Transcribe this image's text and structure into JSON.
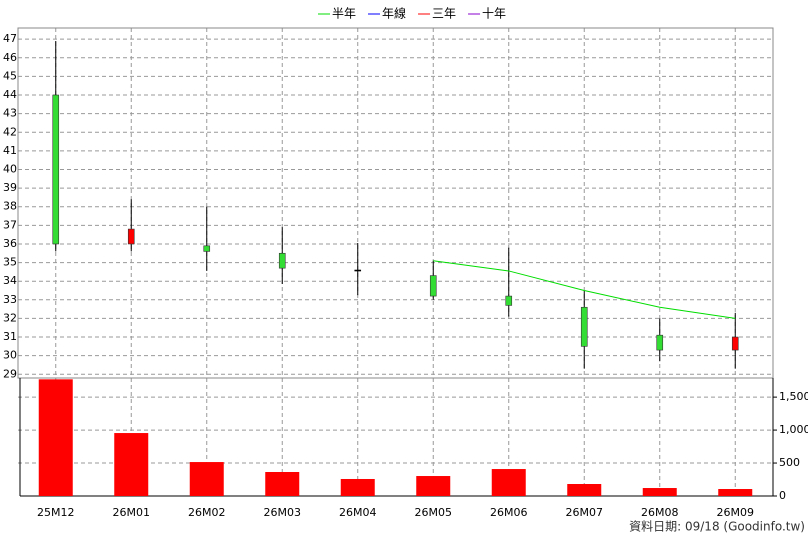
{
  "chart_data": {
    "type": "candlestick",
    "categories": [
      "25M12",
      "26M01",
      "26M02",
      "26M03",
      "26M04",
      "26M05",
      "26M06",
      "26M07",
      "26M08",
      "26M09"
    ],
    "open": [
      44,
      36.0,
      35.9,
      35.5,
      34.6,
      34.3,
      33.2,
      32.6,
      31.1,
      30.3
    ],
    "high": [
      46.9,
      38.4,
      38.0,
      36.9,
      36.05,
      35.1,
      35.8,
      33.5,
      32.0,
      32.3
    ],
    "low": [
      35.6,
      35.6,
      34.55,
      33.85,
      33.25,
      33.0,
      32.1,
      29.3,
      29.7,
      29.3
    ],
    "close": [
      36,
      36.8,
      35.6,
      34.7,
      34.6,
      33.2,
      32.7,
      30.5,
      30.3,
      31.0
    ],
    "up_color": "#ff0000",
    "down_color": "#33dd33",
    "series": [
      {
        "name": "半年",
        "color": "#00dd00",
        "values": [
          null,
          null,
          null,
          null,
          null,
          35.1,
          34.55,
          33.5,
          32.6,
          32.0
        ]
      },
      {
        "name": "年線",
        "color": "#0000ff",
        "values": [
          null,
          null,
          null,
          null,
          null,
          null,
          null,
          null,
          null,
          null
        ]
      },
      {
        "name": "三年",
        "color": "#ff0000",
        "values": [
          null,
          null,
          null,
          null,
          null,
          null,
          null,
          null,
          null,
          null
        ]
      },
      {
        "name": "十年",
        "color": "#8800cc",
        "values": [
          null,
          null,
          null,
          null,
          null,
          null,
          null,
          null,
          null,
          null
        ]
      }
    ],
    "ylim": [
      28.8,
      47.6
    ],
    "yticks": [
      29,
      30,
      31,
      32,
      33,
      34,
      35,
      36,
      37,
      38,
      39,
      40,
      41,
      42,
      43,
      44,
      45,
      46,
      47
    ],
    "grid": true,
    "volume": {
      "values": [
        1770,
        955,
        515,
        364,
        258,
        303,
        409,
        182,
        121,
        106
      ],
      "color": "#ff0000",
      "ylim": [
        0,
        1790
      ],
      "yticks": [
        0,
        500,
        {
          "value": 1000,
          "label": "1,000"
        },
        {
          "value": 1500,
          "label": "1,500"
        }
      ]
    },
    "source": "資料日期: 09/18  (Goodinfo.tw)"
  }
}
